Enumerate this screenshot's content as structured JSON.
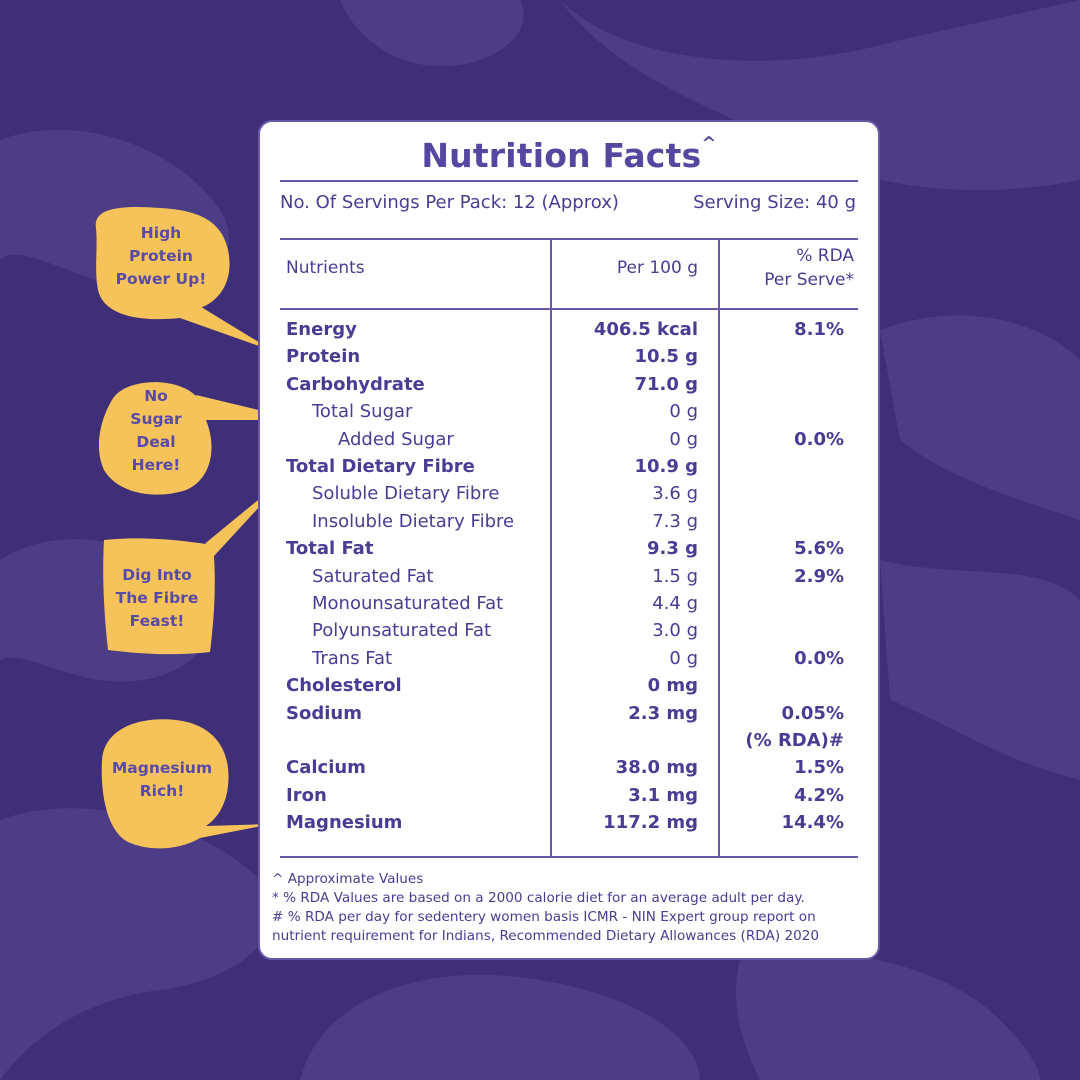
{
  "colors": {
    "background": "#3f2f78",
    "blob": "#4c3d86",
    "card_border": "#6a58a6",
    "text": "#4b3b93",
    "bubble": "#f6c35a"
  },
  "label": {
    "title": "Nutrition Facts",
    "title_mark": "^",
    "servings": "No. Of Servings Per Pack: 12 (Approx)",
    "serving_size": "Serving Size: 40 g",
    "col_nutrients": "Nutrients",
    "col_per100": "Per 100 g",
    "col_rda_1": "% RDA",
    "col_rda_2": "Per Serve*",
    "rows": [
      {
        "name": "Energy",
        "per100": "406.5 kcal",
        "rda": "8.1%"
      },
      {
        "name": "Protein",
        "per100": "10.5 g",
        "rda": ""
      },
      {
        "name": "Carbohydrate",
        "per100": "71.0 g",
        "rda": ""
      },
      {
        "name": "Total Sugar",
        "per100": "0 g",
        "rda": ""
      },
      {
        "name": "Added Sugar",
        "per100": "0 g",
        "rda": "0.0%"
      },
      {
        "name": "Total Dietary Fibre",
        "per100": "10.9 g",
        "rda": ""
      },
      {
        "name": "Soluble Dietary Fibre",
        "per100": "3.6 g",
        "rda": ""
      },
      {
        "name": "Insoluble Dietary Fibre",
        "per100": "7.3 g",
        "rda": ""
      },
      {
        "name": "Total Fat",
        "per100": "9.3 g",
        "rda": "5.6%"
      },
      {
        "name": "Saturated Fat",
        "per100": "1.5 g",
        "rda": "2.9%"
      },
      {
        "name": "Monounsaturated Fat",
        "per100": "4.4 g",
        "rda": ""
      },
      {
        "name": "Polyunsaturated Fat",
        "per100": "3.0 g",
        "rda": ""
      },
      {
        "name": "Trans Fat",
        "per100": "0 g",
        "rda": "0.0%"
      },
      {
        "name": "Cholesterol",
        "per100": "0 mg",
        "rda": ""
      },
      {
        "name": "Sodium",
        "per100": "2.3 mg",
        "rda": "0.05%"
      },
      {
        "name": "",
        "per100": "",
        "rda": "(% RDA)#"
      },
      {
        "name": "Calcium",
        "per100": "38.0 mg",
        "rda": "1.5%"
      },
      {
        "name": "Iron",
        "per100": "3.1 mg",
        "rda": "4.2%"
      },
      {
        "name": "Magnesium",
        "per100": "117.2 mg",
        "rda": "14.4%"
      }
    ],
    "footnotes": [
      "^ Approximate Values",
      "* % RDA Values are based on a 2000 calorie diet for an average adult per day.",
      "# % RDA per day for sedentery women basis ICMR - NIN Expert group report on",
      "nutrient requirement for Indians, Recommended Dietary Allowances (RDA) 2020"
    ]
  },
  "callouts": [
    {
      "lines": [
        "High",
        "Protein",
        "Power Up!"
      ]
    },
    {
      "lines": [
        "No",
        "Sugar",
        "Deal",
        "Here!"
      ]
    },
    {
      "lines": [
        "Dig Into",
        "The Fibre",
        "Feast!"
      ]
    },
    {
      "lines": [
        "Magnesium",
        "Rich!"
      ]
    }
  ]
}
